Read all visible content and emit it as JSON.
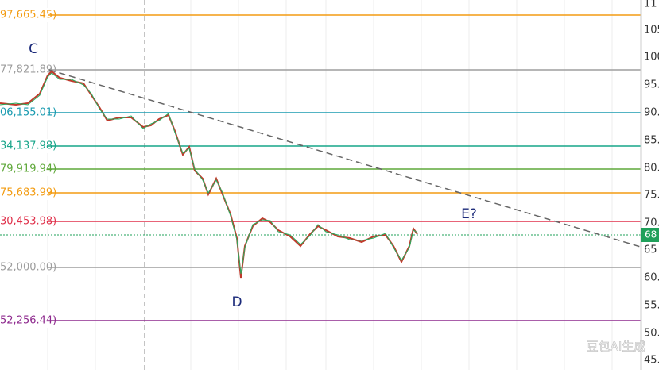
{
  "price_levels": [
    {
      "label": "97,665.45)",
      "color": "#f39c12"
    },
    {
      "label": "77,821.89)",
      "color": "#9e9e9e"
    },
    {
      "label": "06,155.01)",
      "color": "#1a9bb0"
    },
    {
      "label": "34,137.98)",
      "color": "#17a589"
    },
    {
      "label": "79,919.94)",
      "color": "#5fa83a"
    },
    {
      "label": "75,683.99)",
      "color": "#f39c12"
    },
    {
      "label": "30,453.98)",
      "color": "#e0314b"
    },
    {
      "label": "52,000.00)",
      "color": "#9e9e9e"
    },
    {
      "label": "52,256.44)",
      "color": "#8e2a8e"
    }
  ],
  "price_axis": {
    "labels": [
      "11",
      "105",
      "100",
      "95.",
      "90.",
      "85.",
      "80.",
      "75.",
      "70.",
      "65",
      "60.",
      "55.",
      "50.",
      "45."
    ],
    "current_price": "68"
  },
  "annotations": [
    "C",
    "D",
    "E?"
  ],
  "watermark": "豆包AI生成"
}
